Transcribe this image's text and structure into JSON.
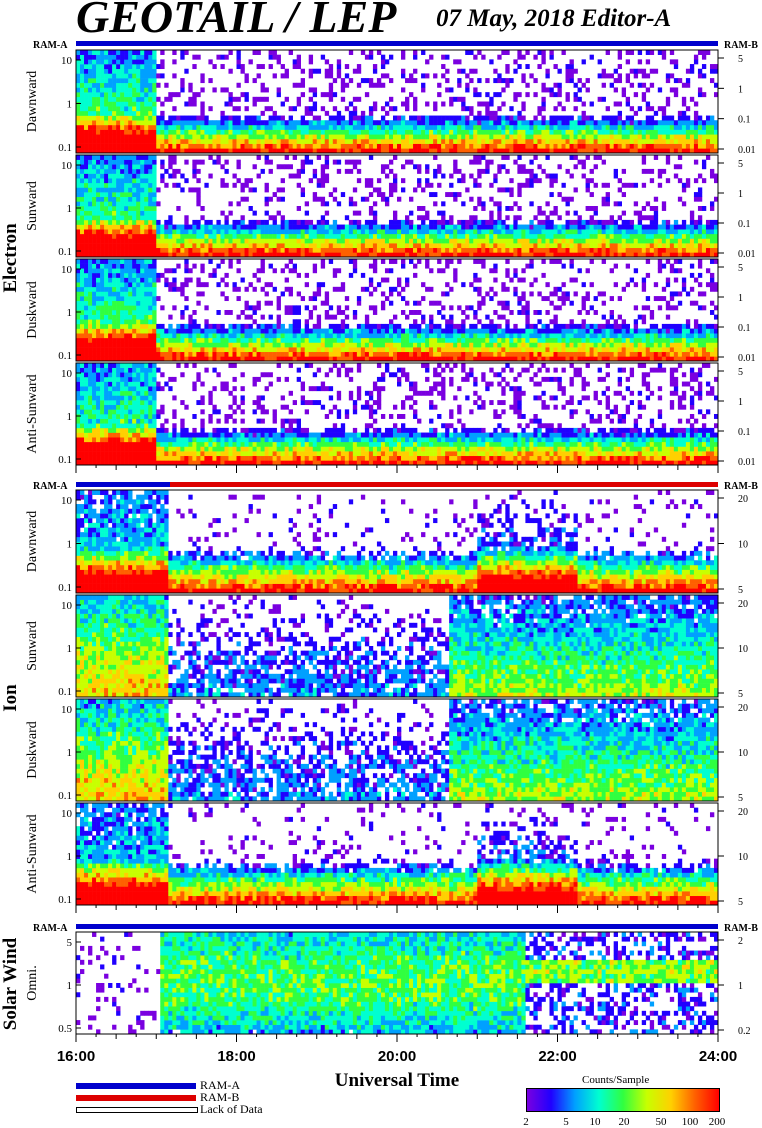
{
  "title": "GEOTAIL / LEP",
  "subtitle": "07 May, 2018   Editor-A",
  "xlabel": "Universal Time",
  "x_ticks": [
    "16:00",
    "18:00",
    "20:00",
    "22:00",
    "24:00"
  ],
  "groups": [
    {
      "label": "Electron",
      "ram_left": "RAM-A",
      "ram_right": "RAM-B"
    },
    {
      "label": "Ion",
      "ram_left": "RAM-A",
      "ram_right": "RAM-B"
    },
    {
      "label": "Solar Wind",
      "ram_left": "RAM-A",
      "ram_right": "RAM-B"
    }
  ],
  "legend": [
    {
      "label": "RAM-A",
      "color": "#0000cc"
    },
    {
      "label": "RAM-B",
      "color": "#dd0000"
    },
    {
      "label": "Lack of Data",
      "color": "#ffffff"
    }
  ],
  "colorbar": {
    "title": "Counts/Sample",
    "ticks": [
      "2",
      "5",
      "10",
      "20",
      "50",
      "100",
      "200"
    ],
    "colors": [
      "#7a00e0",
      "#2000ff",
      "#00a0ff",
      "#00ffd0",
      "#30ff40",
      "#c8ff00",
      "#ffd000",
      "#ff6000",
      "#ff0000"
    ]
  },
  "chart_data": {
    "type": "heatmap",
    "title": "GEOTAIL / LEP",
    "xlabel": "Universal Time",
    "xlim": [
      "16:00",
      "24:00"
    ],
    "panels": [
      {
        "group": "Electron",
        "name": "Dawnward",
        "left_ticks": [
          "10",
          "1",
          "0.1"
        ],
        "right_ticks": [
          "5",
          "1",
          "0.1",
          "0.01"
        ],
        "profile": "electron"
      },
      {
        "group": "Electron",
        "name": "Sunward",
        "left_ticks": [
          "10",
          "1",
          "0.1"
        ],
        "right_ticks": [
          "5",
          "1",
          "0.1",
          "0.01"
        ],
        "profile": "electron"
      },
      {
        "group": "Electron",
        "name": "Duskward",
        "left_ticks": [
          "10",
          "1",
          "0.1"
        ],
        "right_ticks": [
          "5",
          "1",
          "0.1",
          "0.01"
        ],
        "profile": "electron"
      },
      {
        "group": "Electron",
        "name": "Anti-Sunward",
        "left_ticks": [
          "10",
          "1",
          "0.1"
        ],
        "right_ticks": [
          "5",
          "1",
          "0.1",
          "0.01"
        ],
        "profile": "electron"
      },
      {
        "group": "Ion",
        "name": "Dawnward",
        "left_ticks": [
          "10",
          "1",
          "0.1"
        ],
        "right_ticks": [
          "20",
          "10",
          "5"
        ],
        "profile": "ion_strong"
      },
      {
        "group": "Ion",
        "name": "Sunward",
        "left_ticks": [
          "10",
          "1",
          "0.1"
        ],
        "right_ticks": [
          "20",
          "10",
          "5"
        ],
        "profile": "ion_weak"
      },
      {
        "group": "Ion",
        "name": "Duskward",
        "left_ticks": [
          "10",
          "1",
          "0.1"
        ],
        "right_ticks": [
          "20",
          "10",
          "5"
        ],
        "profile": "ion_weak"
      },
      {
        "group": "Ion",
        "name": "Anti-Sunward",
        "left_ticks": [
          "10",
          "1",
          "0.1"
        ],
        "right_ticks": [
          "20",
          "10",
          "5"
        ],
        "profile": "ion_strong"
      },
      {
        "group": "Solar Wind",
        "name": "Omni.",
        "left_ticks": [
          "5",
          "1",
          "0.5"
        ],
        "right_ticks": [
          "2",
          "1",
          "0.2"
        ],
        "profile": "solarwind"
      }
    ]
  }
}
